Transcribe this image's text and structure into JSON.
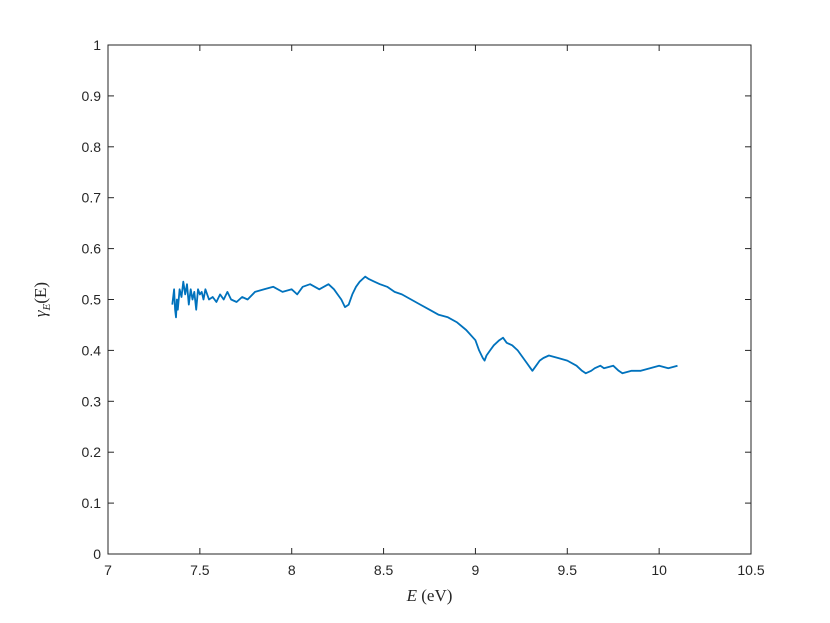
{
  "chart_data": {
    "type": "line",
    "title": "",
    "xlabel": {
      "var": "E",
      "unit": " (eV)"
    },
    "ylabel": {
      "pre": "γ",
      "sub": "E",
      "arg": "(E)"
    },
    "xlim": [
      7,
      10.5
    ],
    "ylim": [
      0,
      1
    ],
    "xticks": [
      "7",
      "7.5",
      "8",
      "8.5",
      "9",
      "9.5",
      "10",
      "10.5"
    ],
    "yticks": [
      "0",
      "0.1",
      "0.2",
      "0.3",
      "0.4",
      "0.5",
      "0.6",
      "0.7",
      "0.8",
      "0.9",
      "1"
    ],
    "grid": false,
    "line_color": "#0072BD",
    "series": [
      {
        "x": [
          7.35,
          7.36,
          7.365,
          7.37,
          7.375,
          7.38,
          7.39,
          7.4,
          7.41,
          7.42,
          7.43,
          7.44,
          7.45,
          7.46,
          7.47,
          7.48,
          7.49,
          7.5,
          7.51,
          7.52,
          7.53,
          7.55,
          7.57,
          7.59,
          7.61,
          7.63,
          7.65,
          7.67,
          7.7,
          7.73,
          7.76,
          7.8,
          7.85,
          7.9,
          7.95,
          8.0,
          8.03,
          8.06,
          8.1,
          8.15,
          8.2,
          8.23,
          8.25,
          8.27,
          8.29,
          8.31,
          8.33,
          8.35,
          8.37,
          8.4,
          8.42,
          8.45,
          8.48,
          8.52,
          8.56,
          8.6,
          8.65,
          8.7,
          8.75,
          8.8,
          8.85,
          8.9,
          8.95,
          9.0,
          9.02,
          9.04,
          9.05,
          9.06,
          9.08,
          9.1,
          9.13,
          9.15,
          9.17,
          9.2,
          9.23,
          9.26,
          9.28,
          9.3,
          9.31,
          9.33,
          9.35,
          9.37,
          9.4,
          9.45,
          9.5,
          9.55,
          9.58,
          9.6,
          9.63,
          9.65,
          9.68,
          9.7,
          9.75,
          9.78,
          9.8,
          9.85,
          9.9,
          9.95,
          10.0,
          10.05,
          10.1
        ],
        "y": [
          0.49,
          0.52,
          0.48,
          0.465,
          0.5,
          0.48,
          0.52,
          0.505,
          0.535,
          0.51,
          0.53,
          0.49,
          0.52,
          0.5,
          0.515,
          0.48,
          0.52,
          0.51,
          0.515,
          0.5,
          0.52,
          0.5,
          0.505,
          0.495,
          0.51,
          0.5,
          0.515,
          0.5,
          0.495,
          0.505,
          0.5,
          0.515,
          0.52,
          0.525,
          0.515,
          0.52,
          0.51,
          0.525,
          0.53,
          0.52,
          0.53,
          0.52,
          0.51,
          0.5,
          0.485,
          0.49,
          0.51,
          0.525,
          0.535,
          0.545,
          0.54,
          0.535,
          0.53,
          0.525,
          0.515,
          0.51,
          0.5,
          0.49,
          0.48,
          0.47,
          0.465,
          0.455,
          0.44,
          0.42,
          0.4,
          0.385,
          0.38,
          0.39,
          0.4,
          0.41,
          0.42,
          0.425,
          0.415,
          0.41,
          0.4,
          0.385,
          0.375,
          0.365,
          0.36,
          0.37,
          0.38,
          0.385,
          0.39,
          0.385,
          0.38,
          0.37,
          0.36,
          0.355,
          0.36,
          0.365,
          0.37,
          0.365,
          0.37,
          0.36,
          0.355,
          0.36,
          0.36,
          0.365,
          0.37,
          0.365,
          0.37
        ]
      }
    ]
  }
}
